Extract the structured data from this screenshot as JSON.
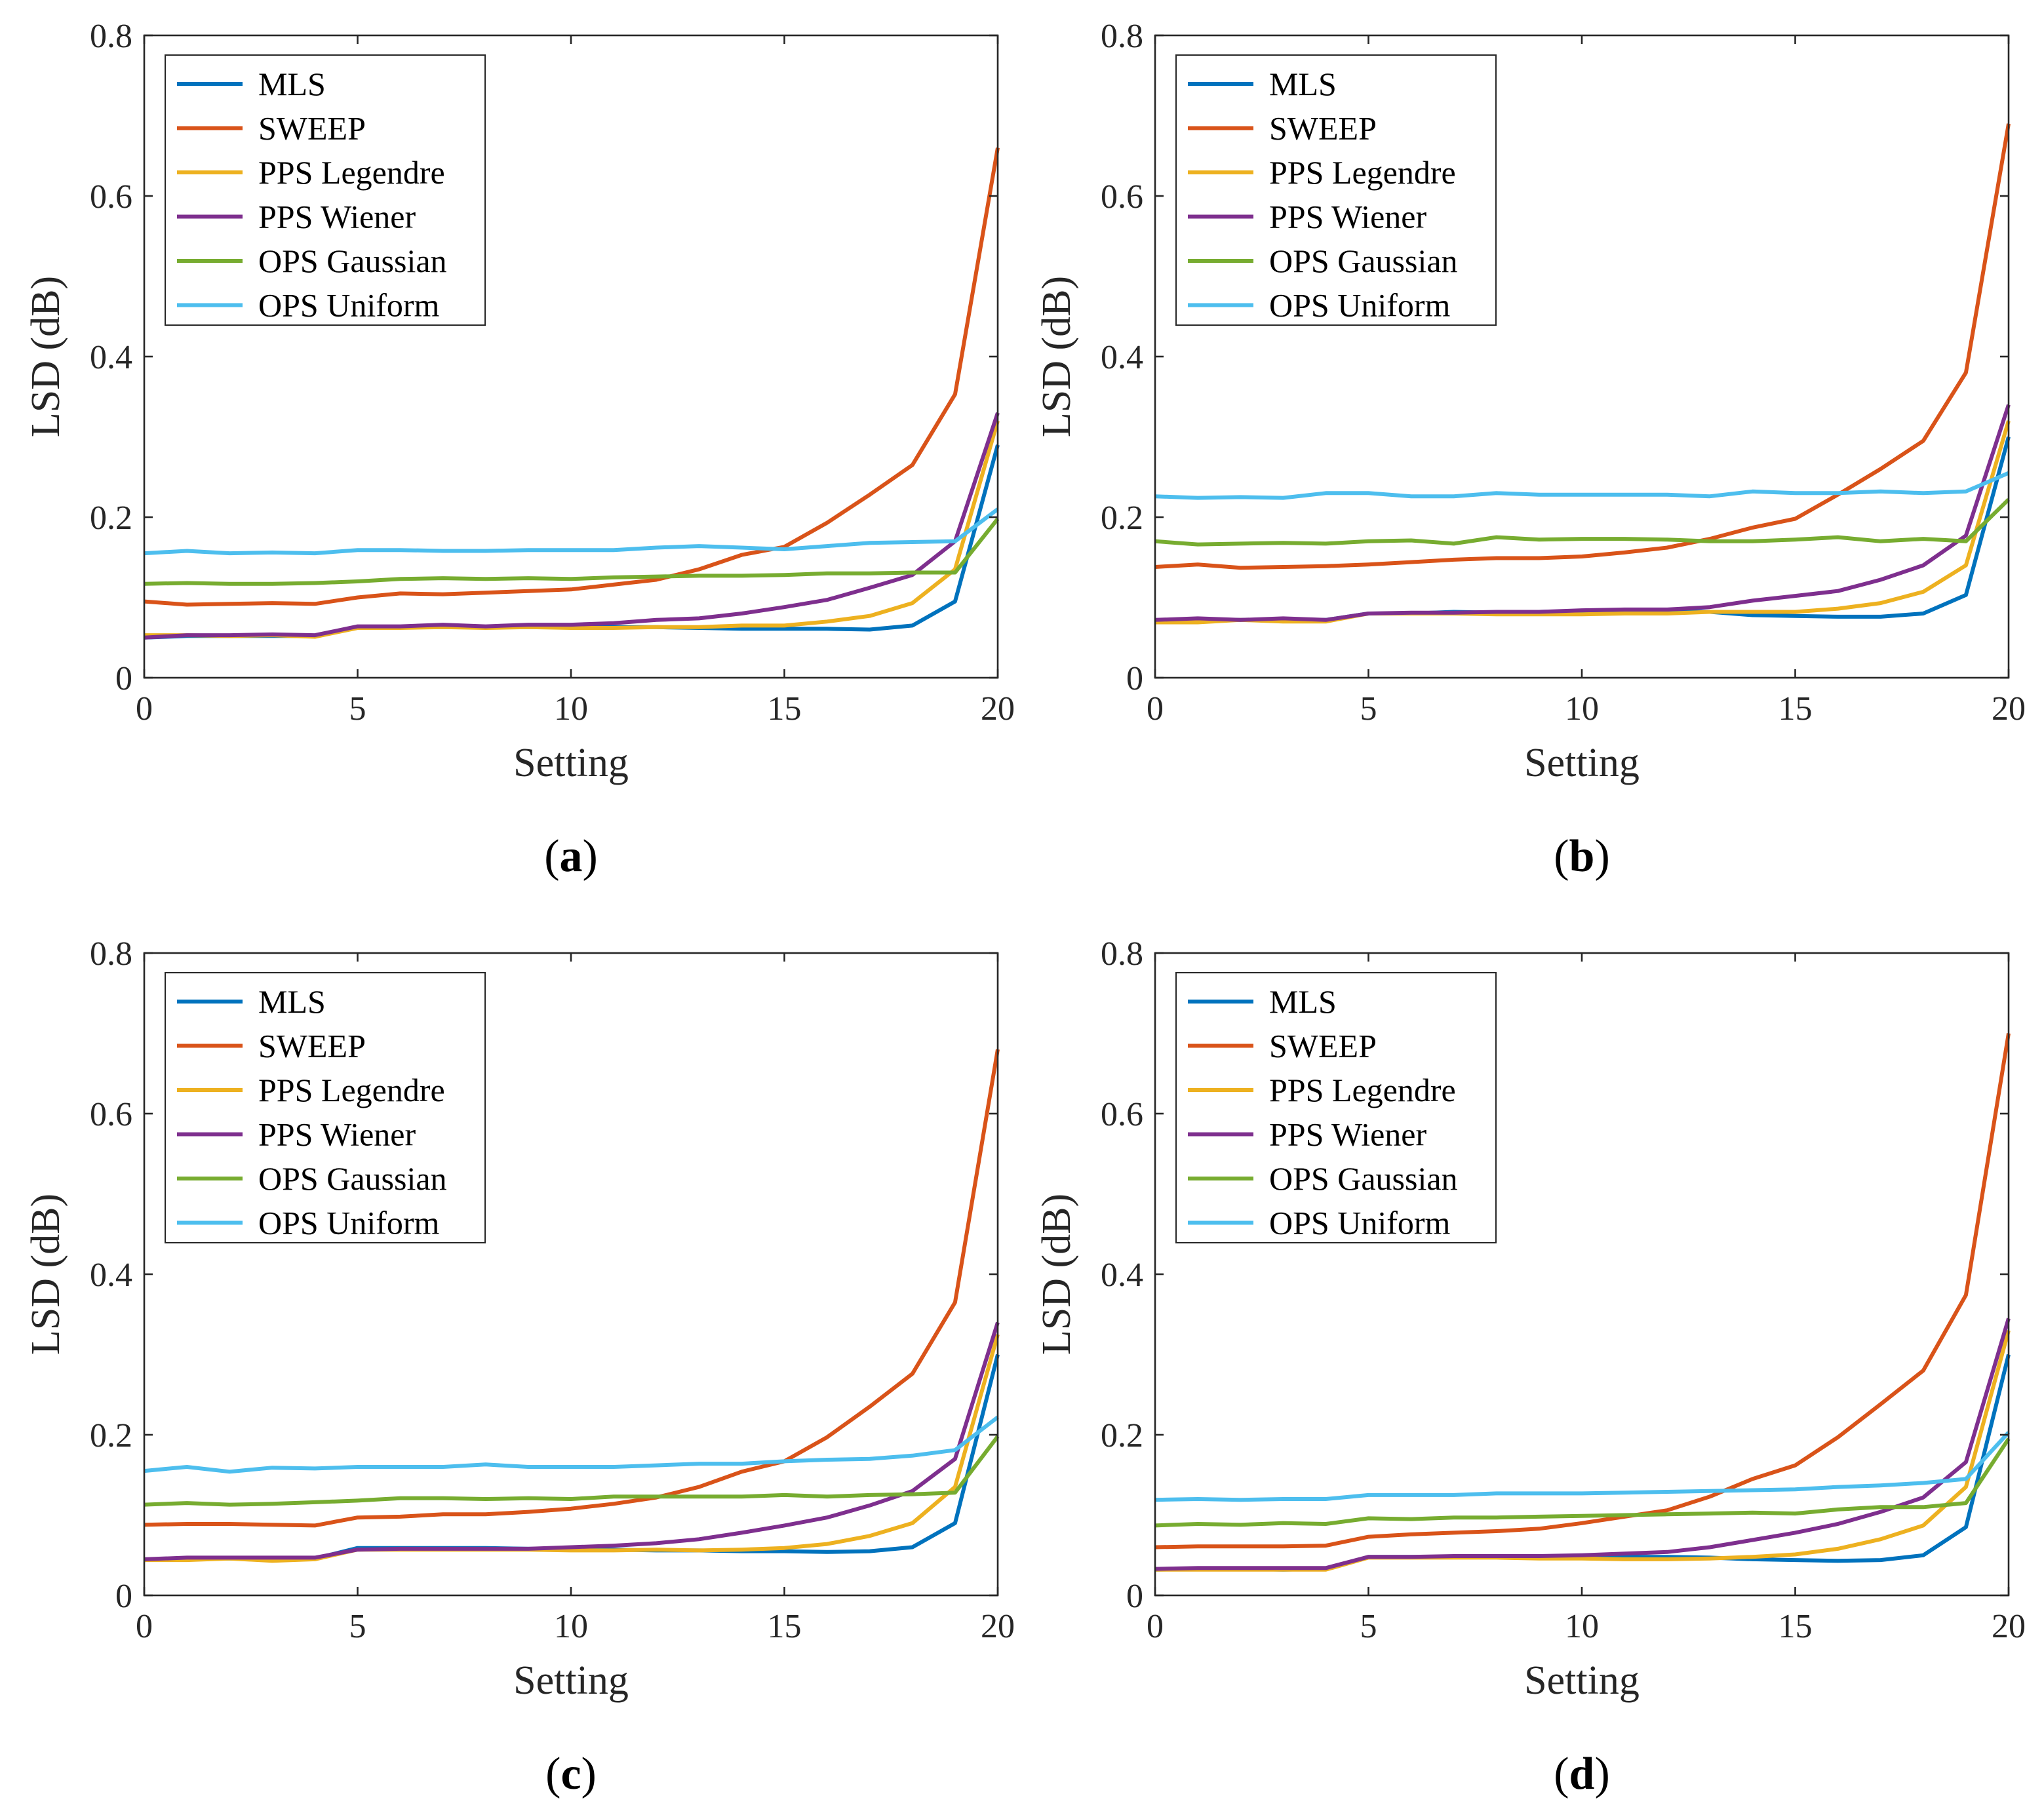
{
  "chart_data": [
    {
      "type": "line",
      "caption": "a",
      "xlabel": "Setting",
      "ylabel": "LSD (dB)",
      "xlim": [
        0,
        20
      ],
      "ylim": [
        0,
        0.8
      ],
      "xticks": [
        0,
        5,
        10,
        15,
        20
      ],
      "yticks": [
        0,
        0.2,
        0.4,
        0.6,
        0.8
      ],
      "ytick_labels": [
        "0",
        "0.2",
        "0.4",
        "0.6",
        "0.8"
      ],
      "legend_position": "top-left",
      "x": [
        0,
        1,
        2,
        3,
        4,
        5,
        6,
        7,
        8,
        9,
        10,
        11,
        12,
        13,
        14,
        15,
        16,
        17,
        18,
        19,
        20
      ],
      "series": [
        {
          "name": "MLS",
          "color": "#0072BD",
          "values": [
            0.05,
            0.052,
            0.052,
            0.052,
            0.052,
            0.063,
            0.063,
            0.063,
            0.063,
            0.063,
            0.063,
            0.063,
            0.063,
            0.062,
            0.061,
            0.061,
            0.061,
            0.06,
            0.065,
            0.095,
            0.29
          ]
        },
        {
          "name": "SWEEP",
          "color": "#D95319",
          "values": [
            0.095,
            0.091,
            0.092,
            0.093,
            0.092,
            0.1,
            0.105,
            0.104,
            0.106,
            0.108,
            0.11,
            0.116,
            0.122,
            0.135,
            0.153,
            0.163,
            0.193,
            0.228,
            0.265,
            0.353,
            0.66
          ]
        },
        {
          "name": "PPS Legendre",
          "color": "#EDB120",
          "values": [
            0.053,
            0.053,
            0.052,
            0.053,
            0.051,
            0.062,
            0.062,
            0.063,
            0.062,
            0.063,
            0.062,
            0.062,
            0.063,
            0.063,
            0.065,
            0.065,
            0.07,
            0.077,
            0.093,
            0.135,
            0.32
          ]
        },
        {
          "name": "PPS Wiener",
          "color": "#7E2F8E",
          "values": [
            0.05,
            0.053,
            0.053,
            0.054,
            0.053,
            0.064,
            0.064,
            0.066,
            0.064,
            0.066,
            0.066,
            0.068,
            0.072,
            0.074,
            0.08,
            0.088,
            0.097,
            0.112,
            0.128,
            0.17,
            0.33
          ]
        },
        {
          "name": "OPS Gaussian",
          "color": "#77AC30",
          "values": [
            0.117,
            0.118,
            0.117,
            0.117,
            0.118,
            0.12,
            0.123,
            0.124,
            0.123,
            0.124,
            0.123,
            0.125,
            0.126,
            0.127,
            0.127,
            0.128,
            0.13,
            0.13,
            0.131,
            0.131,
            0.198
          ]
        },
        {
          "name": "OPS Uniform",
          "color": "#4DBEEE",
          "values": [
            0.155,
            0.158,
            0.155,
            0.156,
            0.155,
            0.159,
            0.159,
            0.158,
            0.158,
            0.159,
            0.159,
            0.159,
            0.162,
            0.164,
            0.162,
            0.16,
            0.164,
            0.168,
            0.169,
            0.17,
            0.21
          ]
        }
      ]
    },
    {
      "type": "line",
      "caption": "b",
      "xlabel": "Setting",
      "ylabel": "LSD (dB)",
      "xlim": [
        0,
        20
      ],
      "ylim": [
        0,
        0.8
      ],
      "xticks": [
        0,
        5,
        10,
        15,
        20
      ],
      "yticks": [
        0,
        0.2,
        0.4,
        0.6,
        0.8
      ],
      "ytick_labels": [
        "0",
        "0.2",
        "0.4",
        "0.6",
        "0.8"
      ],
      "legend_position": "top-left",
      "x": [
        0,
        1,
        2,
        3,
        4,
        5,
        6,
        7,
        8,
        9,
        10,
        11,
        12,
        13,
        14,
        15,
        16,
        17,
        18,
        19,
        20
      ],
      "series": [
        {
          "name": "MLS",
          "color": "#0072BD",
          "values": [
            0.071,
            0.073,
            0.072,
            0.073,
            0.072,
            0.08,
            0.08,
            0.082,
            0.081,
            0.082,
            0.083,
            0.083,
            0.083,
            0.082,
            0.078,
            0.077,
            0.076,
            0.076,
            0.08,
            0.103,
            0.3
          ]
        },
        {
          "name": "SWEEP",
          "color": "#D95319",
          "values": [
            0.138,
            0.141,
            0.137,
            0.138,
            0.139,
            0.141,
            0.144,
            0.147,
            0.149,
            0.149,
            0.151,
            0.156,
            0.162,
            0.173,
            0.187,
            0.198,
            0.228,
            0.26,
            0.295,
            0.38,
            0.69
          ]
        },
        {
          "name": "PPS Legendre",
          "color": "#EDB120",
          "values": [
            0.069,
            0.069,
            0.072,
            0.07,
            0.07,
            0.08,
            0.08,
            0.08,
            0.079,
            0.079,
            0.079,
            0.08,
            0.08,
            0.082,
            0.082,
            0.082,
            0.086,
            0.093,
            0.107,
            0.14,
            0.32
          ]
        },
        {
          "name": "PPS Wiener",
          "color": "#7E2F8E",
          "values": [
            0.072,
            0.074,
            0.072,
            0.074,
            0.072,
            0.08,
            0.081,
            0.081,
            0.082,
            0.082,
            0.084,
            0.085,
            0.085,
            0.088,
            0.096,
            0.102,
            0.108,
            0.122,
            0.14,
            0.177,
            0.34
          ]
        },
        {
          "name": "OPS Gaussian",
          "color": "#77AC30",
          "values": [
            0.17,
            0.166,
            0.167,
            0.168,
            0.167,
            0.17,
            0.171,
            0.167,
            0.175,
            0.172,
            0.173,
            0.173,
            0.172,
            0.17,
            0.17,
            0.172,
            0.175,
            0.17,
            0.173,
            0.17,
            0.222
          ]
        },
        {
          "name": "OPS Uniform",
          "color": "#4DBEEE",
          "values": [
            0.226,
            0.224,
            0.225,
            0.224,
            0.23,
            0.23,
            0.226,
            0.226,
            0.23,
            0.228,
            0.228,
            0.228,
            0.228,
            0.226,
            0.232,
            0.23,
            0.23,
            0.232,
            0.23,
            0.232,
            0.255
          ]
        }
      ]
    },
    {
      "type": "line",
      "caption": "c",
      "xlabel": "Setting",
      "ylabel": "LSD (dB)",
      "xlim": [
        0,
        20
      ],
      "ylim": [
        0,
        0.8
      ],
      "xticks": [
        0,
        5,
        10,
        15,
        20
      ],
      "yticks": [
        0,
        0.2,
        0.4,
        0.6,
        0.8
      ],
      "ytick_labels": [
        "0",
        "0.2",
        "0.4",
        "0.6",
        "0.8"
      ],
      "legend_position": "top-left",
      "x": [
        0,
        1,
        2,
        3,
        4,
        5,
        6,
        7,
        8,
        9,
        10,
        11,
        12,
        13,
        14,
        15,
        16,
        17,
        18,
        19,
        20
      ],
      "series": [
        {
          "name": "MLS",
          "color": "#0072BD",
          "values": [
            0.044,
            0.046,
            0.046,
            0.045,
            0.046,
            0.059,
            0.059,
            0.059,
            0.059,
            0.058,
            0.058,
            0.057,
            0.056,
            0.056,
            0.055,
            0.055,
            0.054,
            0.055,
            0.06,
            0.09,
            0.3
          ]
        },
        {
          "name": "SWEEP",
          "color": "#D95319",
          "values": [
            0.088,
            0.089,
            0.089,
            0.088,
            0.087,
            0.097,
            0.098,
            0.101,
            0.101,
            0.104,
            0.108,
            0.114,
            0.122,
            0.135,
            0.154,
            0.167,
            0.197,
            0.235,
            0.276,
            0.365,
            0.68
          ]
        },
        {
          "name": "PPS Legendre",
          "color": "#EDB120",
          "values": [
            0.044,
            0.044,
            0.046,
            0.043,
            0.045,
            0.057,
            0.057,
            0.057,
            0.057,
            0.057,
            0.056,
            0.056,
            0.057,
            0.056,
            0.057,
            0.059,
            0.064,
            0.074,
            0.09,
            0.135,
            0.325
          ]
        },
        {
          "name": "PPS Wiener",
          "color": "#7E2F8E",
          "values": [
            0.045,
            0.047,
            0.047,
            0.047,
            0.047,
            0.057,
            0.058,
            0.058,
            0.058,
            0.058,
            0.06,
            0.062,
            0.065,
            0.07,
            0.078,
            0.087,
            0.097,
            0.112,
            0.13,
            0.17,
            0.34
          ]
        },
        {
          "name": "OPS Gaussian",
          "color": "#77AC30",
          "values": [
            0.113,
            0.115,
            0.113,
            0.114,
            0.116,
            0.118,
            0.121,
            0.121,
            0.12,
            0.121,
            0.12,
            0.123,
            0.123,
            0.123,
            0.123,
            0.125,
            0.123,
            0.125,
            0.126,
            0.128,
            0.198
          ]
        },
        {
          "name": "OPS Uniform",
          "color": "#4DBEEE",
          "values": [
            0.155,
            0.16,
            0.154,
            0.159,
            0.158,
            0.16,
            0.16,
            0.16,
            0.163,
            0.16,
            0.16,
            0.16,
            0.162,
            0.164,
            0.164,
            0.167,
            0.169,
            0.17,
            0.174,
            0.181,
            0.222
          ]
        }
      ]
    },
    {
      "type": "line",
      "caption": "d",
      "xlabel": "Setting",
      "ylabel": "LSD (dB)",
      "xlim": [
        0,
        20
      ],
      "ylim": [
        0,
        0.8
      ],
      "xticks": [
        0,
        5,
        10,
        15,
        20
      ],
      "yticks": [
        0,
        0.2,
        0.4,
        0.6,
        0.8
      ],
      "ytick_labels": [
        "0",
        "0.2",
        "0.4",
        "0.6",
        "0.8"
      ],
      "legend_position": "top-left",
      "x": [
        0,
        1,
        2,
        3,
        4,
        5,
        6,
        7,
        8,
        9,
        10,
        11,
        12,
        13,
        14,
        15,
        16,
        17,
        18,
        19,
        20
      ],
      "series": [
        {
          "name": "MLS",
          "color": "#0072BD",
          "values": [
            0.032,
            0.033,
            0.033,
            0.032,
            0.033,
            0.048,
            0.048,
            0.048,
            0.048,
            0.048,
            0.048,
            0.048,
            0.048,
            0.047,
            0.045,
            0.044,
            0.043,
            0.044,
            0.05,
            0.085,
            0.3
          ]
        },
        {
          "name": "SWEEP",
          "color": "#D95319",
          "values": [
            0.06,
            0.061,
            0.061,
            0.061,
            0.062,
            0.073,
            0.076,
            0.078,
            0.08,
            0.083,
            0.09,
            0.098,
            0.106,
            0.123,
            0.145,
            0.162,
            0.197,
            0.238,
            0.28,
            0.374,
            0.7
          ]
        },
        {
          "name": "PPS Legendre",
          "color": "#EDB120",
          "values": [
            0.032,
            0.032,
            0.032,
            0.032,
            0.032,
            0.047,
            0.047,
            0.047,
            0.047,
            0.046,
            0.046,
            0.045,
            0.045,
            0.046,
            0.048,
            0.051,
            0.058,
            0.07,
            0.087,
            0.135,
            0.33
          ]
        },
        {
          "name": "PPS Wiener",
          "color": "#7E2F8E",
          "values": [
            0.033,
            0.034,
            0.034,
            0.034,
            0.034,
            0.048,
            0.048,
            0.049,
            0.049,
            0.049,
            0.05,
            0.052,
            0.054,
            0.06,
            0.069,
            0.078,
            0.089,
            0.104,
            0.122,
            0.166,
            0.345
          ]
        },
        {
          "name": "OPS Gaussian",
          "color": "#77AC30",
          "values": [
            0.087,
            0.089,
            0.088,
            0.09,
            0.089,
            0.096,
            0.095,
            0.097,
            0.097,
            0.098,
            0.099,
            0.1,
            0.101,
            0.102,
            0.103,
            0.102,
            0.107,
            0.11,
            0.11,
            0.115,
            0.195
          ]
        },
        {
          "name": "OPS Uniform",
          "color": "#4DBEEE",
          "values": [
            0.119,
            0.12,
            0.119,
            0.12,
            0.12,
            0.125,
            0.125,
            0.125,
            0.127,
            0.127,
            0.127,
            0.128,
            0.129,
            0.13,
            0.131,
            0.132,
            0.135,
            0.137,
            0.14,
            0.145,
            0.203
          ]
        }
      ]
    }
  ]
}
